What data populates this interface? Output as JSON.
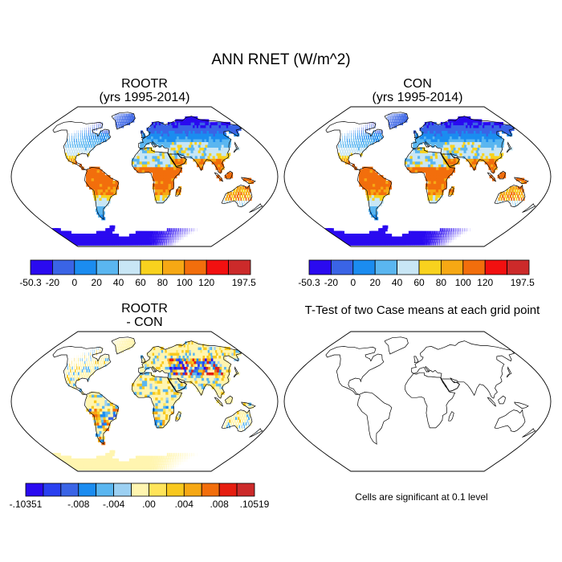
{
  "page": {
    "title": "ANN RNET (W/m^2)"
  },
  "panels": [
    {
      "id": "rootr",
      "title": "ROOTR",
      "subtitle": "(yrs 1995-2014)",
      "field": "rnet"
    },
    {
      "id": "con",
      "title": "CON",
      "subtitle": "(yrs 1995-2014)",
      "field": "rnet"
    },
    {
      "id": "diff",
      "title": "ROOTR",
      "subtitle": "- CON",
      "field": "diff"
    },
    {
      "id": "ttest",
      "title": "T-Test of two Case means at each grid point",
      "subtitle": "",
      "field": "none"
    }
  ],
  "colorbars": [
    {
      "id": "rnet",
      "labels": [
        "-50.3",
        "-20",
        "0",
        "20",
        "40",
        "60",
        "80",
        "100",
        "120",
        "197.5"
      ],
      "colors": [
        "#2a0af0",
        "#3a64e6",
        "#1b8cf0",
        "#5ab6f0",
        "#c8e6f5",
        "#f8d21e",
        "#f6a814",
        "#f26e0c",
        "#f21010",
        "#cc2a2a"
      ]
    },
    {
      "id": "diff",
      "labels": [
        "-.10351",
        "-.008",
        "-.004",
        ".00",
        ".004",
        ".008",
        ".10519"
      ],
      "colors": [
        "#2a0af0",
        "#2a40f0",
        "#3a64e6",
        "#1b8cf0",
        "#5ab6f0",
        "#9cd0f2",
        "#fff5b0",
        "#ffe45a",
        "#f8c81e",
        "#f6a814",
        "#f26e0c",
        "#e61e10",
        "#cc2a2a"
      ]
    }
  ],
  "note": "Cells are significant at 0.1 level"
}
